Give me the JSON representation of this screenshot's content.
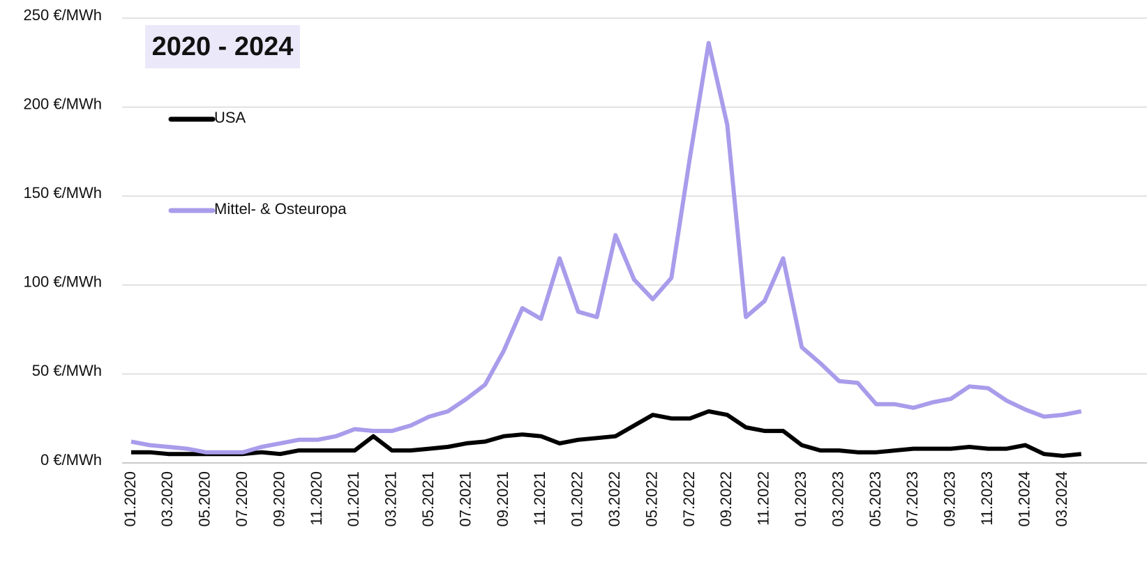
{
  "chart_data": {
    "type": "line",
    "title": "2020 - 2024",
    "categories": [
      "01.2020",
      null,
      "03.2020",
      null,
      "05.2020",
      null,
      "07.2020",
      null,
      "09.2020",
      null,
      "11.2020",
      null,
      "01.2021",
      null,
      "03.2021",
      null,
      "05.2021",
      null,
      "07.2021",
      null,
      "09.2021",
      null,
      "11.2021",
      null,
      "01.2022",
      null,
      "03.2022",
      null,
      "05.2022",
      null,
      "07.2022",
      null,
      "09.2022",
      null,
      "11.2022",
      null,
      "01.2023",
      null,
      "03.2023",
      null,
      "05.2023",
      null,
      "07.2023",
      null,
      "09.2023",
      null,
      "11.2023",
      null,
      "01.2024",
      null,
      "03.2024",
      null
    ],
    "series": [
      {
        "name": "USA",
        "color": "#000000",
        "values": [
          6,
          6,
          5,
          5,
          5,
          5,
          5,
          6,
          5,
          7,
          7,
          7,
          7,
          15,
          7,
          7,
          8,
          9,
          11,
          12,
          15,
          16,
          15,
          11,
          13,
          14,
          15,
          21,
          27,
          25,
          25,
          29,
          27,
          20,
          18,
          18,
          10,
          7,
          7,
          6,
          6,
          7,
          8,
          8,
          8,
          9,
          8,
          8,
          10,
          5,
          4,
          5
        ]
      },
      {
        "name": "Mittel- & Osteuropa",
        "color": "#a89ceb",
        "values": [
          12,
          10,
          9,
          8,
          6,
          6,
          6,
          9,
          11,
          13,
          13,
          15,
          19,
          18,
          18,
          21,
          26,
          29,
          36,
          44,
          63,
          87,
          81,
          115,
          85,
          82,
          128,
          103,
          92,
          104,
          172,
          236,
          190,
          82,
          91,
          115,
          65,
          56,
          46,
          45,
          33,
          33,
          31,
          34,
          36,
          43,
          42,
          35,
          30,
          26,
          27,
          29
        ]
      }
    ],
    "ylim": [
      0,
      250
    ],
    "yticks": [
      {
        "value": 0,
        "label": "0 €/MWh"
      },
      {
        "value": 50,
        "label": "50 €/MWh"
      },
      {
        "value": 100,
        "label": "100 €/MWh"
      },
      {
        "value": 150,
        "label": "150 €/MWh"
      },
      {
        "value": 200,
        "label": "200 €/MWh"
      },
      {
        "value": 250,
        "label": "250 €/MWh"
      }
    ],
    "grid": true
  }
}
